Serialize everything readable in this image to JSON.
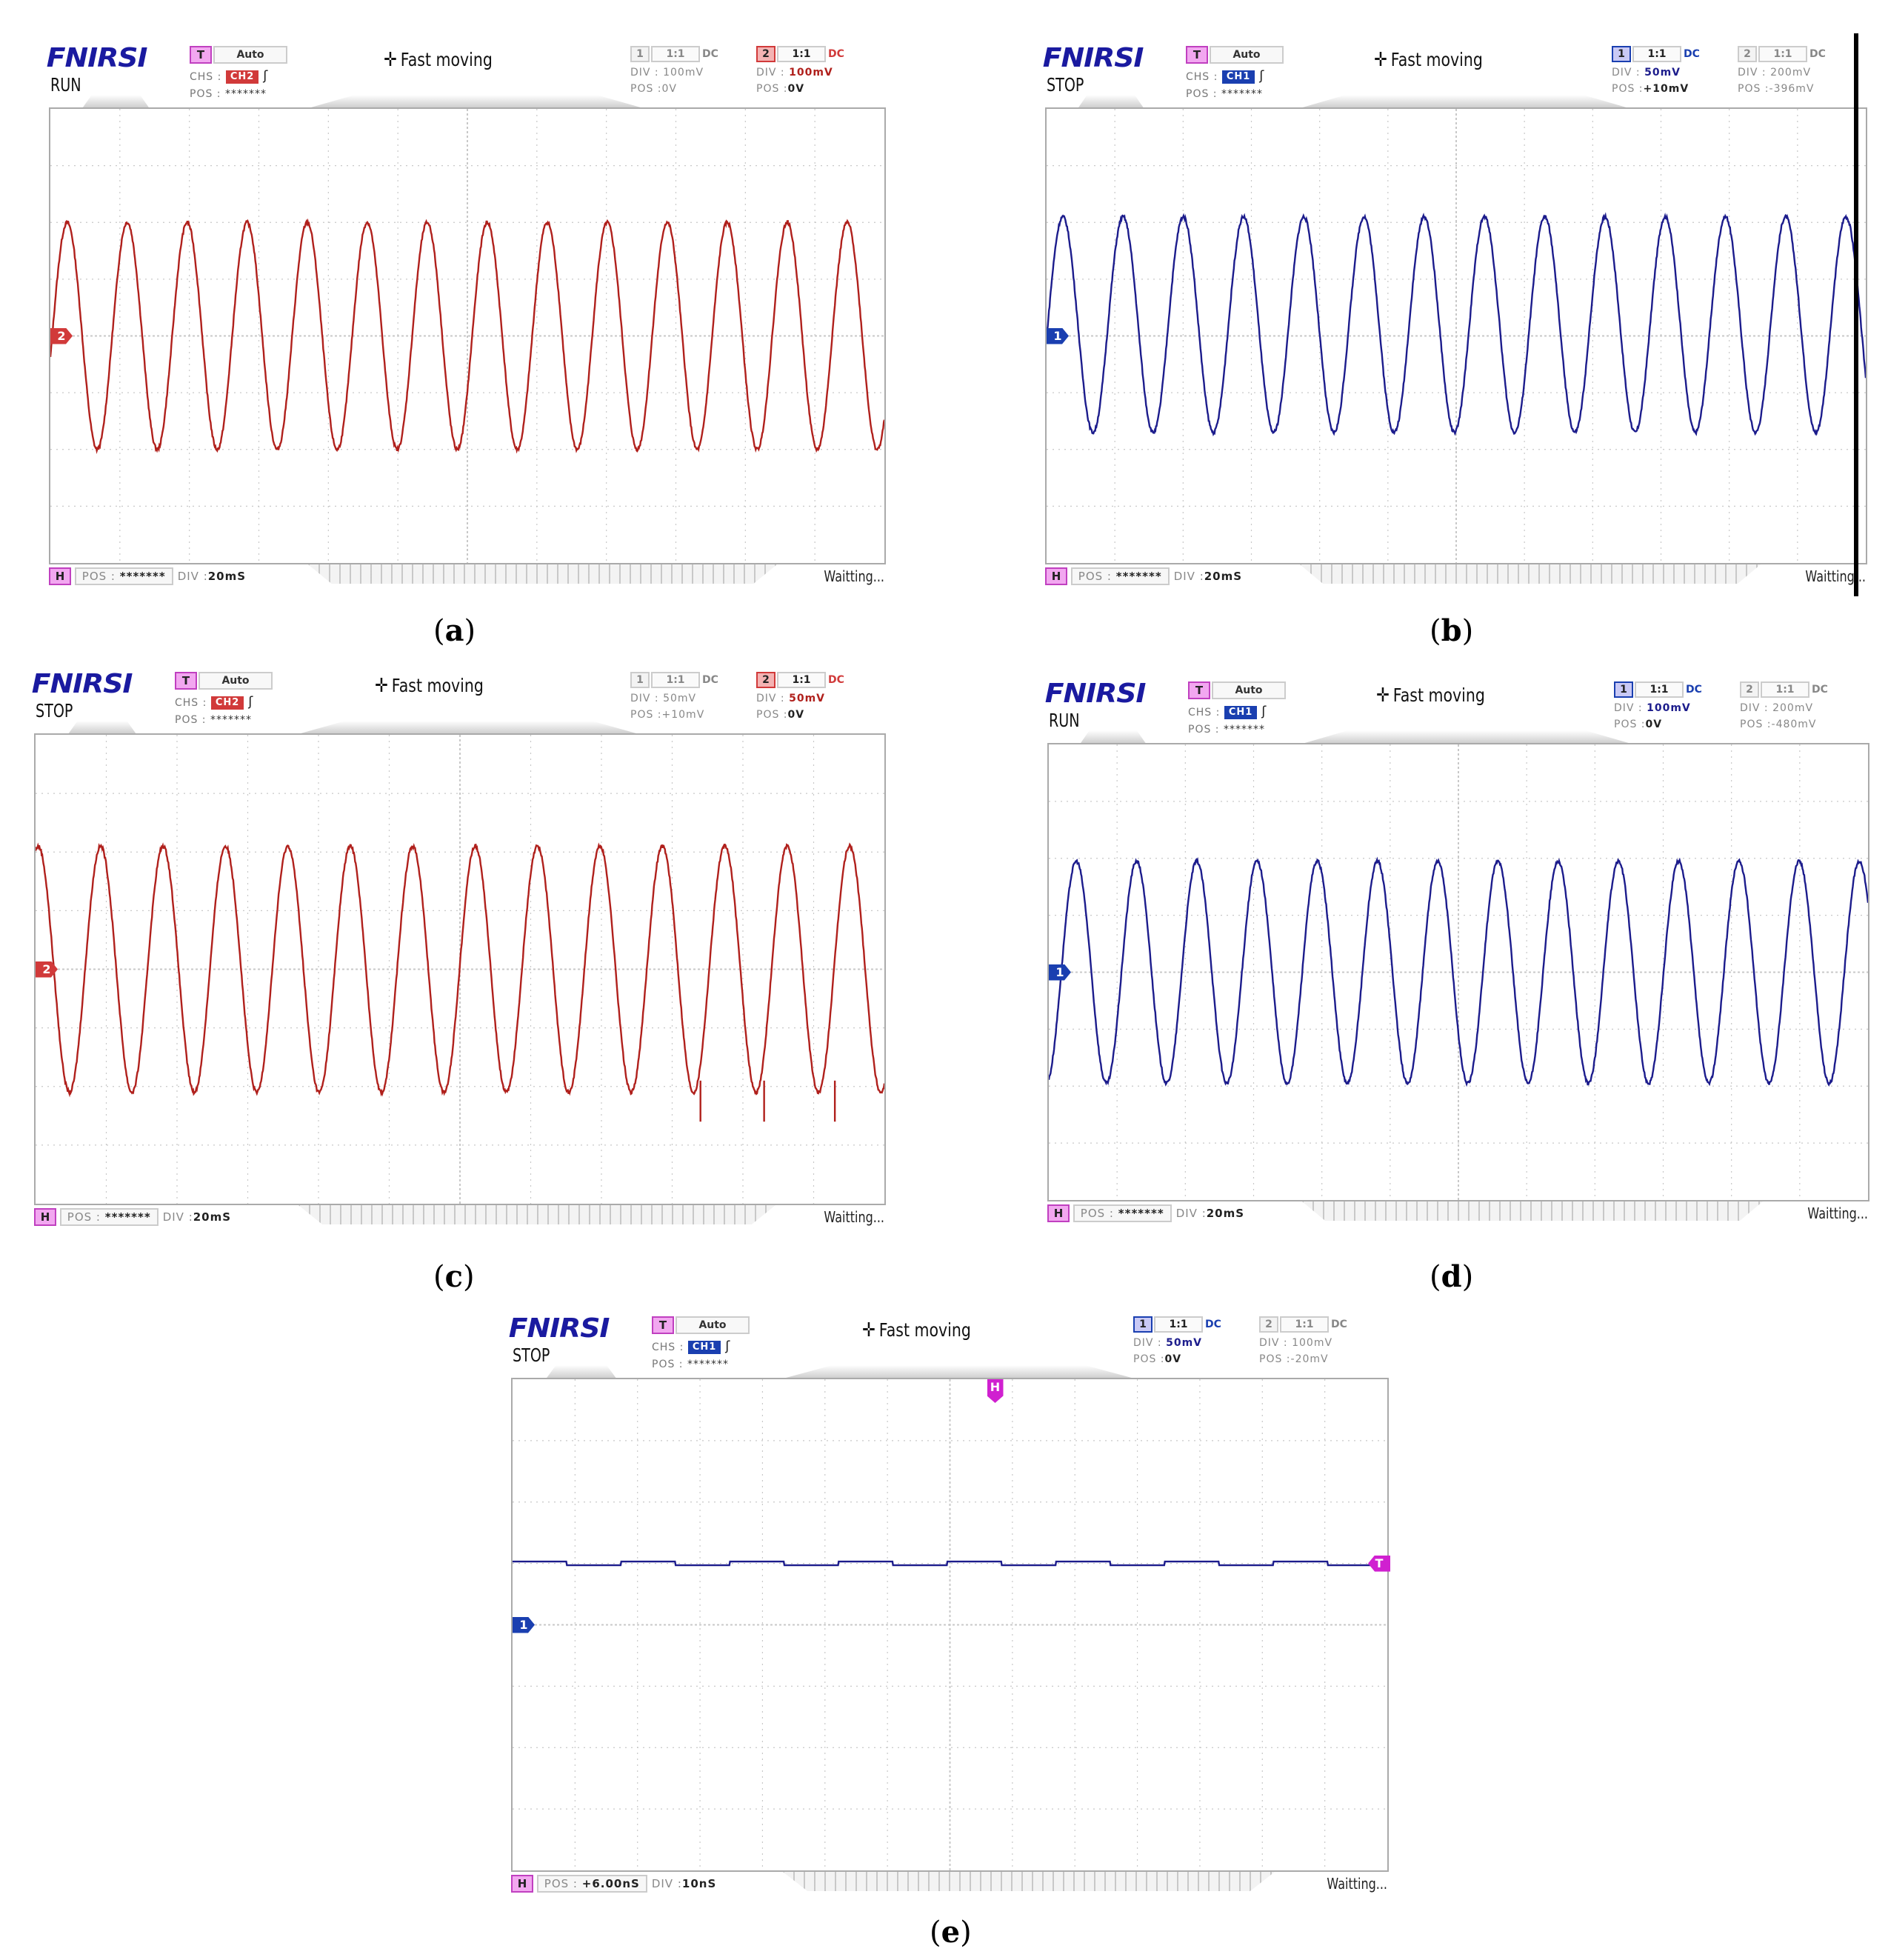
{
  "colors": {
    "ch1": "#1c1c8c",
    "ch1_badge": "#1a3fb0",
    "ch2": "#b0201c",
    "ch2_badge": "#d13a3a",
    "trigger_marker": "#d020d0",
    "logo": "#1a1aa0",
    "grid": "#c8c8c8"
  },
  "common": {
    "logo": "FNIRSI",
    "trigger_label": "T",
    "trigger_mode": "Auto",
    "chs_label": "CHS :",
    "pos_label": "POS :",
    "pos_masked": "*******",
    "fast_moving": "Fast moving",
    "fast_moving_icon": "move-arrows-icon",
    "coupling_ratio": "1:1",
    "coupling": "DC",
    "div_label": "DIV :",
    "h_label": "H",
    "status_right": "Waitting..."
  },
  "panels": [
    {
      "id": "a",
      "caption": "a",
      "run_state": "RUN",
      "chs": "CH2",
      "ch1": {
        "num": "1",
        "div": "100mV",
        "pos": "0V",
        "active": false
      },
      "ch2": {
        "num": "2",
        "div": "100mV",
        "pos": "0V",
        "active": true
      },
      "h_pos": "*******",
      "h_div": "20mS",
      "marker": "2"
    },
    {
      "id": "b",
      "caption": "b",
      "run_state": "STOP",
      "chs": "CH1",
      "ch1": {
        "num": "1",
        "div": "50mV",
        "pos": "+10mV",
        "active": true
      },
      "ch2": {
        "num": "2",
        "div": "200mV",
        "pos": "-396mV",
        "active": false
      },
      "h_pos": "*******",
      "h_div": "20mS",
      "marker": "1"
    },
    {
      "id": "c",
      "caption": "c",
      "run_state": "STOP",
      "chs": "CH2",
      "ch1": {
        "num": "1",
        "div": "50mV",
        "pos": "+10mV",
        "active": false
      },
      "ch2": {
        "num": "2",
        "div": "50mV",
        "pos": "0V",
        "active": true
      },
      "h_pos": "*******",
      "h_div": "20mS",
      "marker": "2"
    },
    {
      "id": "d",
      "caption": "d",
      "run_state": "RUN",
      "chs": "CH1",
      "ch1": {
        "num": "1",
        "div": "100mV",
        "pos": "0V",
        "active": true
      },
      "ch2": {
        "num": "2",
        "div": "200mV",
        "pos": "-480mV",
        "active": false
      },
      "h_pos": "*******",
      "h_div": "20mS",
      "marker": "1"
    },
    {
      "id": "e",
      "caption": "e",
      "run_state": "STOP",
      "chs": "CH1",
      "ch1": {
        "num": "1",
        "div": "50mV",
        "pos": "0V",
        "active": true
      },
      "ch2": {
        "num": "2",
        "div": "100mV",
        "pos": "-20mV",
        "active": false
      },
      "h_pos": "+6.00nS",
      "h_div": "10nS",
      "marker": "1",
      "h_marker": "H",
      "t_marker": "T"
    }
  ],
  "chart_data": [
    {
      "type": "line",
      "title": "(a) CH2 sine waveform, RUN",
      "xlabel": "time (20 mS/div)",
      "ylabel": "voltage (100 mV/div)",
      "x_divisions": 12,
      "y_divisions": 8,
      "ylim_div": [
        -4,
        4
      ],
      "grid": true,
      "series": [
        {
          "name": "CH2",
          "waveform": "sine",
          "cycles_on_screen": 13.9,
          "amplitude_div": 2.0,
          "offset_div": 0.0,
          "phase_start_div": -1.7,
          "approx_amplitude_mV": 200,
          "approx_frequency_Hz": 58
        }
      ]
    },
    {
      "type": "line",
      "title": "(b) CH1 sine waveform, STOP",
      "xlabel": "time (20 mS/div)",
      "ylabel": "voltage (50 mV/div)",
      "x_divisions": 12,
      "y_divisions": 8,
      "ylim_div": [
        -4,
        4
      ],
      "grid": true,
      "series": [
        {
          "name": "CH1",
          "waveform": "sine",
          "cycles_on_screen": 13.6,
          "amplitude_div": 1.9,
          "offset_div": 0.2,
          "phase_start_div": 0.9,
          "approx_amplitude_mV": 95,
          "approx_frequency_Hz": 57
        }
      ]
    },
    {
      "type": "line",
      "title": "(c) CH2 sine waveform with glitches, STOP",
      "xlabel": "time (20 mS/div)",
      "ylabel": "voltage (50 mV/div)",
      "x_divisions": 12,
      "y_divisions": 8,
      "ylim_div": [
        -4,
        4
      ],
      "grid": true,
      "series": [
        {
          "name": "CH2",
          "waveform": "sine",
          "cycles_on_screen": 13.6,
          "amplitude_div": 2.1,
          "offset_div": 0.0,
          "phase_start_div": 0.7,
          "approx_amplitude_mV": 105,
          "approx_frequency_Hz": 57,
          "glitch_x_div": [
            9.4,
            10.3,
            11.3
          ]
        }
      ]
    },
    {
      "type": "line",
      "title": "(d) CH1 sine waveform, RUN",
      "xlabel": "time (20 mS/div)",
      "ylabel": "voltage (100 mV/div)",
      "x_divisions": 12,
      "y_divisions": 8,
      "ylim_div": [
        -4,
        4
      ],
      "grid": true,
      "series": [
        {
          "name": "CH1",
          "waveform": "sine",
          "cycles_on_screen": 13.6,
          "amplitude_div": 1.95,
          "offset_div": 0.0,
          "phase_start_div": -0.7,
          "approx_amplitude_mV": 195,
          "approx_frequency_Hz": 57
        }
      ]
    },
    {
      "type": "line",
      "title": "(e) CH1 flat DC level, STOP",
      "xlabel": "time (10 nS/div)",
      "ylabel": "voltage (50 mV/div)",
      "x_divisions": 14,
      "y_divisions": 8,
      "ylim_div": [
        -4,
        4
      ],
      "grid": true,
      "series": [
        {
          "name": "CH1",
          "waveform": "dc",
          "cycles_on_screen": 0,
          "amplitude_div": 0.0,
          "offset_div": 1.0,
          "phase_start_div": 0,
          "approx_level_mV": 50,
          "ripple_div": 0.03
        }
      ]
    }
  ]
}
